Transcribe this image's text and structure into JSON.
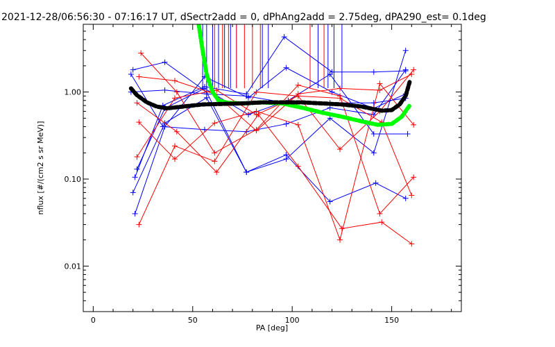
{
  "chart_data": {
    "type": "line",
    "title": "2021-12-28/06:56:30 - 07:16:17 UT, dSectr2add = 0, dPhAng2add = 2.75deg, dPA290_est=   0.1deg",
    "xlabel": "PA [deg]",
    "ylabel": "nflux [#/(cm2 s sr MeV)]",
    "xlim": [
      -5,
      185
    ],
    "ylim": [
      0.003,
      6.0
    ],
    "y_scale": "log",
    "grid": false,
    "x_ticks": [
      {
        "value": 0,
        "label": "0"
      },
      {
        "value": 50,
        "label": "50"
      },
      {
        "value": 100,
        "label": "100"
      },
      {
        "value": 150,
        "label": "150"
      }
    ],
    "x_minor_ticks": [
      10,
      20,
      30,
      40,
      60,
      70,
      80,
      90,
      110,
      120,
      130,
      140,
      160,
      170,
      180
    ],
    "y_ticks": [
      {
        "value": 0.01,
        "label": "0.01"
      },
      {
        "value": 0.1,
        "label": "0.10"
      },
      {
        "value": 1.0,
        "label": "1.00"
      }
    ],
    "y_minor_ticks": [
      0.004,
      0.005,
      0.006,
      0.007,
      0.008,
      0.009,
      0.02,
      0.03,
      0.04,
      0.05,
      0.06,
      0.07,
      0.08,
      0.09,
      0.2,
      0.3,
      0.4,
      0.5,
      0.6,
      0.7,
      0.8,
      0.9,
      2,
      3,
      4,
      5
    ],
    "series": [
      {
        "color": "#0000ff",
        "style": "line-plus",
        "points": [
          [
            20,
            1.8
          ],
          [
            36,
            2.2
          ],
          [
            57,
            1.0
          ],
          [
            77,
            0.12
          ],
          [
            97,
            0.19
          ],
          [
            119,
            0.055
          ],
          [
            142,
            0.09
          ],
          [
            157,
            0.06
          ]
        ]
      },
      {
        "color": "#0000ff",
        "style": "line-plus",
        "points": [
          [
            19,
            1.6
          ],
          [
            35,
            0.4
          ],
          [
            56,
            0.37
          ],
          [
            77,
            0.35
          ],
          [
            97,
            0.43
          ],
          [
            119,
            0.66
          ],
          [
            141,
            0.55
          ],
          [
            157,
            1.8
          ]
        ]
      },
      {
        "color": "#0000ff",
        "style": "line-plus",
        "points": [
          [
            20,
            0.07
          ],
          [
            36,
            0.44
          ],
          [
            57,
            0.86
          ],
          [
            77,
            0.12
          ],
          [
            97,
            0.17
          ],
          [
            119,
            0.5
          ],
          [
            141,
            0.2
          ],
          [
            157,
            3.0
          ]
        ]
      },
      {
        "color": "#0000ff",
        "style": "line-plus",
        "points": [
          [
            21,
            0.04
          ],
          [
            36,
            0.4
          ],
          [
            56,
            1.5
          ],
          [
            78,
            0.86
          ],
          [
            97,
            1.9
          ],
          [
            120,
            1.0
          ],
          [
            141,
            0.65
          ],
          [
            157,
            0.95
          ]
        ]
      },
      {
        "color": "#0000ff",
        "style": "line-plus",
        "points": [
          [
            21,
            0.105
          ],
          [
            35,
            0.7
          ],
          [
            56,
            1.15
          ],
          [
            77,
            0.95
          ],
          [
            96,
            4.3
          ],
          [
            120,
            1.7
          ],
          [
            141,
            1.7
          ],
          [
            157,
            1.75
          ]
        ]
      },
      {
        "color": "#0000ff",
        "style": "line-plus",
        "points": [
          [
            22,
            0.13
          ],
          [
            36,
            0.65
          ],
          [
            56,
            1.1
          ],
          [
            78,
            0.55
          ],
          [
            98,
            0.8
          ],
          [
            119,
            1.6
          ],
          [
            141,
            0.33
          ],
          [
            158,
            0.33
          ]
        ]
      },
      {
        "color": "#0000ff",
        "style": "line-plus",
        "points": [
          [
            19,
            1.0
          ],
          [
            36,
            1.05
          ],
          [
            57,
            0.95
          ],
          [
            77,
            0.9
          ],
          [
            97,
            0.75
          ],
          [
            119,
            0.75
          ],
          [
            141,
            0.75
          ],
          [
            157,
            0.85
          ]
        ]
      },
      {
        "color": "#ff0000",
        "style": "line-plus",
        "points": [
          [
            24,
            2.8
          ],
          [
            42,
            1.0
          ],
          [
            61,
            0.2
          ],
          [
            82,
            0.37
          ],
          [
            103,
            1.2
          ],
          [
            124,
            0.9
          ],
          [
            144,
            0.04
          ],
          [
            161,
            0.105
          ]
        ]
      },
      {
        "color": "#ff0000",
        "style": "line-plus",
        "points": [
          [
            23,
            0.45
          ],
          [
            41,
            0.17
          ],
          [
            61,
            0.44
          ],
          [
            82,
            0.6
          ],
          [
            103,
            0.42
          ],
          [
            124,
            0.02
          ],
          [
            144,
            1.25
          ],
          [
            161,
            0.42
          ]
        ]
      },
      {
        "color": "#ff0000",
        "style": "line-plus",
        "points": [
          [
            23,
            0.03
          ],
          [
            41,
            0.24
          ],
          [
            61,
            0.16
          ],
          [
            82,
            1.0
          ],
          [
            103,
            0.9
          ],
          [
            124,
            0.22
          ],
          [
            144,
            0.6
          ],
          [
            161,
            1.8
          ]
        ]
      },
      {
        "color": "#ff0000",
        "style": "line-plus",
        "points": [
          [
            22,
            0.75
          ],
          [
            42,
            0.35
          ],
          [
            62,
            0.12
          ],
          [
            83,
            0.55
          ],
          [
            103,
            0.14
          ],
          [
            125,
            0.027
          ],
          [
            145,
            0.032
          ],
          [
            160,
            0.018
          ]
        ]
      },
      {
        "color": "#ff0000",
        "style": "line-plus",
        "points": [
          [
            22,
            0.18
          ],
          [
            41,
            0.85
          ],
          [
            62,
            1.05
          ],
          [
            82,
            0.55
          ],
          [
            103,
            0.9
          ],
          [
            124,
            0.85
          ],
          [
            145,
            0.45
          ],
          [
            160,
            0.065
          ]
        ]
      },
      {
        "color": "#ff0000",
        "style": "line-plus",
        "points": [
          [
            23,
            1.5
          ],
          [
            41,
            1.35
          ],
          [
            61,
            0.95
          ],
          [
            82,
            0.36
          ],
          [
            103,
            0.95
          ],
          [
            124,
            1.1
          ],
          [
            144,
            1.05
          ],
          [
            160,
            1.6
          ]
        ]
      },
      {
        "color": "#00ff00",
        "style": "thick-dashed",
        "points": [
          [
            53,
            6.0
          ],
          [
            55,
            3.0
          ],
          [
            57,
            1.6
          ],
          [
            60,
            1.0
          ],
          [
            63,
            0.8
          ],
          [
            68,
            0.75
          ],
          [
            75,
            0.74
          ],
          [
            85,
            0.76
          ],
          [
            95,
            0.74
          ],
          [
            105,
            0.66
          ],
          [
            115,
            0.58
          ],
          [
            125,
            0.52
          ],
          [
            135,
            0.46
          ],
          [
            143,
            0.42
          ],
          [
            150,
            0.43
          ],
          [
            155,
            0.52
          ],
          [
            159,
            0.7
          ]
        ]
      },
      {
        "color": "#000000",
        "style": "thick-dashed",
        "points": [
          [
            19,
            1.1
          ],
          [
            22,
            0.92
          ],
          [
            27,
            0.76
          ],
          [
            32,
            0.68
          ],
          [
            37,
            0.65
          ],
          [
            45,
            0.68
          ],
          [
            55,
            0.72
          ],
          [
            65,
            0.73
          ],
          [
            75,
            0.74
          ],
          [
            85,
            0.76
          ],
          [
            95,
            0.76
          ],
          [
            105,
            0.76
          ],
          [
            115,
            0.74
          ],
          [
            125,
            0.72
          ],
          [
            135,
            0.68
          ],
          [
            145,
            0.61
          ],
          [
            150,
            0.62
          ],
          [
            154,
            0.72
          ],
          [
            157,
            0.9
          ],
          [
            159,
            1.3
          ]
        ]
      }
    ],
    "vertical_lines": [
      {
        "color": "#0000ff",
        "x": [
          55,
          57,
          60,
          63,
          66,
          69,
          72,
          85,
          88,
          113,
          118,
          121,
          125
        ]
      },
      {
        "color": "#ff0000",
        "x": [
          61,
          65,
          68,
          72,
          76,
          80,
          84,
          109,
          116
        ]
      }
    ]
  }
}
